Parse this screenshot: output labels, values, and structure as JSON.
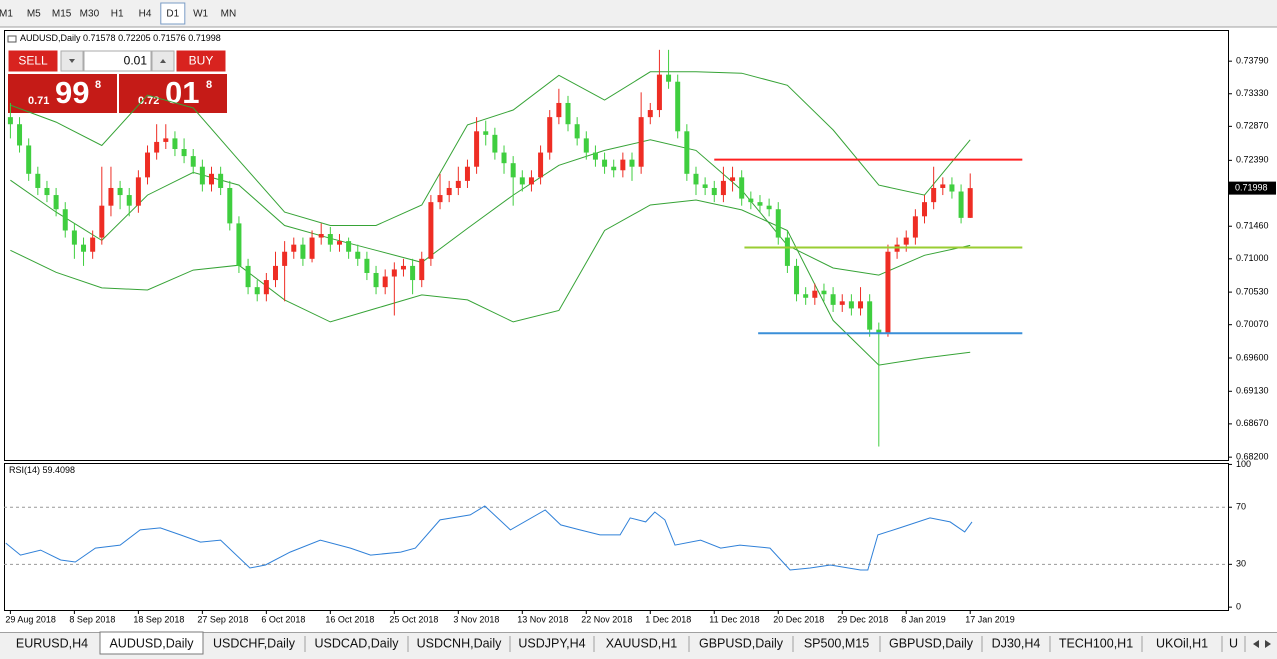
{
  "toolbar": {
    "timeframes": [
      "M1",
      "M5",
      "M15",
      "M30",
      "H1",
      "H4",
      "D1",
      "W1",
      "MN"
    ],
    "active": "D1"
  },
  "trade_panel": {
    "sell": "SELL",
    "lot": "0.01",
    "buy": "BUY",
    "bid": {
      "prefix": "0.71",
      "pips": "99",
      "point": "8"
    },
    "ask": {
      "prefix": "0.72",
      "pips": "01",
      "point": "8"
    }
  },
  "chart_data": [
    {
      "type": "candlestick",
      "title": "AUDUSD,Daily",
      "up_color": "#ee2d24",
      "down_color": "#3fce3f",
      "ohlc": [
        [
          0.73,
          0.732,
          0.727,
          0.729
        ],
        [
          0.729,
          0.73,
          0.725,
          0.726
        ],
        [
          0.726,
          0.727,
          0.721,
          0.722
        ],
        [
          0.722,
          0.723,
          0.719,
          0.72
        ],
        [
          0.72,
          0.721,
          0.718,
          0.719
        ],
        [
          0.719,
          0.72,
          0.716,
          0.717
        ],
        [
          0.717,
          0.718,
          0.713,
          0.714
        ],
        [
          0.714,
          0.715,
          0.71,
          0.712
        ],
        [
          0.712,
          0.713,
          0.709,
          0.711
        ],
        [
          0.711,
          0.714,
          0.71,
          0.713
        ],
        [
          0.713,
          0.723,
          0.712,
          0.7175
        ],
        [
          0.7175,
          0.723,
          0.716,
          0.72
        ],
        [
          0.72,
          0.721,
          0.717,
          0.719
        ],
        [
          0.719,
          0.72,
          0.716,
          0.7175
        ],
        [
          0.7175,
          0.7225,
          0.7165,
          0.7215
        ],
        [
          0.7215,
          0.726,
          0.7205,
          0.725
        ],
        [
          0.725,
          0.729,
          0.724,
          0.7265
        ],
        [
          0.7265,
          0.729,
          0.7255,
          0.727
        ],
        [
          0.727,
          0.728,
          0.7245,
          0.7255
        ],
        [
          0.7255,
          0.727,
          0.7235,
          0.7245
        ],
        [
          0.7245,
          0.7255,
          0.722,
          0.723
        ],
        [
          0.723,
          0.724,
          0.7195,
          0.7205
        ],
        [
          0.7205,
          0.723,
          0.7195,
          0.722
        ],
        [
          0.722,
          0.723,
          0.719,
          0.72
        ],
        [
          0.72,
          0.721,
          0.714,
          0.715
        ],
        [
          0.715,
          0.716,
          0.708,
          0.709
        ],
        [
          0.709,
          0.71,
          0.705,
          0.706
        ],
        [
          0.706,
          0.707,
          0.704,
          0.705
        ],
        [
          0.705,
          0.708,
          0.704,
          0.707
        ],
        [
          0.707,
          0.711,
          0.706,
          0.709
        ],
        [
          0.709,
          0.7125,
          0.704,
          0.711
        ],
        [
          0.711,
          0.713,
          0.71,
          0.712
        ],
        [
          0.712,
          0.713,
          0.709,
          0.71
        ],
        [
          0.71,
          0.714,
          0.7095,
          0.713
        ],
        [
          0.713,
          0.715,
          0.712,
          0.7135
        ],
        [
          0.7135,
          0.7145,
          0.711,
          0.712
        ],
        [
          0.712,
          0.7135,
          0.711,
          0.7125
        ],
        [
          0.7125,
          0.713,
          0.71,
          0.711
        ],
        [
          0.711,
          0.712,
          0.709,
          0.71
        ],
        [
          0.71,
          0.711,
          0.707,
          0.708
        ],
        [
          0.708,
          0.709,
          0.705,
          0.706
        ],
        [
          0.706,
          0.7085,
          0.705,
          0.7075
        ],
        [
          0.7075,
          0.7095,
          0.702,
          0.7085
        ],
        [
          0.7085,
          0.71,
          0.7075,
          0.709
        ],
        [
          0.709,
          0.71,
          0.705,
          0.707
        ],
        [
          0.707,
          0.711,
          0.706,
          0.71
        ],
        [
          0.71,
          0.719,
          0.709,
          0.718
        ],
        [
          0.718,
          0.722,
          0.717,
          0.719
        ],
        [
          0.719,
          0.721,
          0.718,
          0.72
        ],
        [
          0.72,
          0.723,
          0.719,
          0.721
        ],
        [
          0.721,
          0.724,
          0.72,
          0.723
        ],
        [
          0.723,
          0.73,
          0.722,
          0.728
        ],
        [
          0.728,
          0.7295,
          0.726,
          0.7275
        ],
        [
          0.7275,
          0.7285,
          0.724,
          0.725
        ],
        [
          0.725,
          0.726,
          0.722,
          0.7235
        ],
        [
          0.7235,
          0.7245,
          0.7175,
          0.7215
        ],
        [
          0.7215,
          0.7225,
          0.7195,
          0.7205
        ],
        [
          0.7205,
          0.7225,
          0.7195,
          0.7215
        ],
        [
          0.7215,
          0.726,
          0.7205,
          0.725
        ],
        [
          0.725,
          0.731,
          0.724,
          0.73
        ],
        [
          0.73,
          0.734,
          0.729,
          0.732
        ],
        [
          0.732,
          0.733,
          0.728,
          0.729
        ],
        [
          0.729,
          0.73,
          0.726,
          0.727
        ],
        [
          0.727,
          0.728,
          0.724,
          0.725
        ],
        [
          0.725,
          0.726,
          0.723,
          0.724
        ],
        [
          0.724,
          0.725,
          0.722,
          0.723
        ],
        [
          0.723,
          0.724,
          0.7215,
          0.7225
        ],
        [
          0.7225,
          0.725,
          0.7215,
          0.724
        ],
        [
          0.724,
          0.725,
          0.721,
          0.723
        ],
        [
          0.723,
          0.7335,
          0.722,
          0.73
        ],
        [
          0.73,
          0.732,
          0.729,
          0.731
        ],
        [
          0.731,
          0.7395,
          0.73,
          0.736
        ],
        [
          0.736,
          0.7395,
          0.734,
          0.735
        ],
        [
          0.735,
          0.736,
          0.727,
          0.728
        ],
        [
          0.728,
          0.729,
          0.721,
          0.722
        ],
        [
          0.722,
          0.723,
          0.719,
          0.7205
        ],
        [
          0.7205,
          0.7215,
          0.719,
          0.72
        ],
        [
          0.72,
          0.721,
          0.718,
          0.719
        ],
        [
          0.719,
          0.723,
          0.718,
          0.721
        ],
        [
          0.721,
          0.723,
          0.7195,
          0.7215
        ],
        [
          0.7215,
          0.7225,
          0.7175,
          0.7185
        ],
        [
          0.7185,
          0.7195,
          0.717,
          0.718
        ],
        [
          0.718,
          0.719,
          0.7165,
          0.7175
        ],
        [
          0.7175,
          0.7185,
          0.716,
          0.717
        ],
        [
          0.717,
          0.718,
          0.712,
          0.713
        ],
        [
          0.713,
          0.714,
          0.708,
          0.709
        ],
        [
          0.709,
          0.71,
          0.704,
          0.705
        ],
        [
          0.705,
          0.706,
          0.7035,
          0.7045
        ],
        [
          0.7045,
          0.7065,
          0.7035,
          0.7055
        ],
        [
          0.7055,
          0.7065,
          0.704,
          0.705
        ],
        [
          0.705,
          0.706,
          0.7025,
          0.7035
        ],
        [
          0.7035,
          0.705,
          0.7025,
          0.704
        ],
        [
          0.704,
          0.705,
          0.702,
          0.703
        ],
        [
          0.703,
          0.706,
          0.702,
          0.704
        ],
        [
          0.704,
          0.705,
          0.699,
          0.7
        ],
        [
          0.7,
          0.701,
          0.6835,
          0.6995
        ],
        [
          0.6995,
          0.712,
          0.699,
          0.711
        ],
        [
          0.711,
          0.713,
          0.71,
          0.712
        ],
        [
          0.712,
          0.714,
          0.711,
          0.713
        ],
        [
          0.713,
          0.717,
          0.712,
          0.716
        ],
        [
          0.716,
          0.719,
          0.715,
          0.718
        ],
        [
          0.718,
          0.723,
          0.717,
          0.72
        ],
        [
          0.72,
          0.7215,
          0.719,
          0.7205
        ],
        [
          0.7205,
          0.7215,
          0.7185,
          0.7195
        ],
        [
          0.7195,
          0.7205,
          0.715,
          0.71578
        ],
        [
          0.71578,
          0.72205,
          0.71576,
          0.71998
        ]
      ],
      "bands": {
        "color": "#36a336",
        "x": [
          0,
          5,
          10,
          15,
          20,
          25,
          30,
          35,
          40,
          45,
          50,
          55,
          60,
          65,
          70,
          75,
          80,
          85,
          90,
          95,
          100,
          105
        ],
        "upper": [
          0.7317,
          0.7293,
          0.726,
          0.7331,
          0.7313,
          0.7239,
          0.7166,
          0.7147,
          0.7147,
          0.7176,
          0.7289,
          0.731,
          0.7359,
          0.7324,
          0.7364,
          0.7364,
          0.7362,
          0.7345,
          0.7282,
          0.7204,
          0.719,
          0.7268
        ],
        "middle": [
          0.7211,
          0.7166,
          0.7126,
          0.719,
          0.7222,
          0.7204,
          0.7147,
          0.7129,
          0.7112,
          0.7095,
          0.7143,
          0.719,
          0.7232,
          0.7253,
          0.7268,
          0.7253,
          0.7197,
          0.7119,
          0.7087,
          0.7077,
          0.7105,
          0.7119
        ],
        "lower": [
          0.7112,
          0.7081,
          0.7059,
          0.7056,
          0.7084,
          0.7091,
          0.7042,
          0.7011,
          0.703,
          0.7049,
          0.7042,
          0.7011,
          0.7027,
          0.714,
          0.7176,
          0.7183,
          0.7169,
          0.714,
          0.7013,
          0.695,
          0.696,
          0.6968
        ]
      },
      "levels": [
        {
          "value": 0.724,
          "x": [
            77,
            110.7
          ],
          "color": "#ff2020"
        },
        {
          "value": 0.7116,
          "x": [
            80.3,
            110.7
          ],
          "color": "#9acd32"
        },
        {
          "value": 0.6995,
          "x": [
            81.8,
            110.7
          ],
          "color": "#3a8fd8"
        }
      ],
      "last": 0.71998,
      "xlim": [
        -0.7,
        133.2
      ],
      "xticks": [
        {
          "value": 0,
          "label": "29 Aug 2018"
        },
        {
          "value": 7,
          "label": "8 Sep 2018"
        },
        {
          "value": 14,
          "label": "18 Sep 2018"
        },
        {
          "value": 21,
          "label": "27 Sep 2018"
        },
        {
          "value": 28,
          "label": "6 Oct 2018"
        },
        {
          "value": 35,
          "label": "16 Oct 2018"
        },
        {
          "value": 42,
          "label": "25 Oct 2018"
        },
        {
          "value": 49,
          "label": "3 Nov 2018"
        },
        {
          "value": 56,
          "label": "13 Nov 2018"
        },
        {
          "value": 63,
          "label": "22 Nov 2018"
        },
        {
          "value": 70,
          "label": "1 Dec 2018"
        },
        {
          "value": 77,
          "label": "11 Dec 2018"
        },
        {
          "value": 84,
          "label": "20 Dec 2018"
        },
        {
          "value": 91,
          "label": "29 Dec 2018"
        },
        {
          "value": 98,
          "label": "8 Jan 2019"
        },
        {
          "value": 105,
          "label": "17 Jan 2019"
        }
      ],
      "ylim": [
        0.6816,
        0.7423
      ],
      "yticks": [
        {
          "value": 0.7379,
          "label": "0.73790"
        },
        {
          "value": 0.7333,
          "label": "0.73330"
        },
        {
          "value": 0.7287,
          "label": "0.72870"
        },
        {
          "value": 0.7239,
          "label": "0.72390"
        },
        {
          "value": 0.7146,
          "label": "0.71460"
        },
        {
          "value": 0.71,
          "label": "0.71000"
        },
        {
          "value": 0.7053,
          "label": "0.70530"
        },
        {
          "value": 0.7007,
          "label": "0.70070"
        },
        {
          "value": 0.696,
          "label": "0.69600"
        },
        {
          "value": 0.6913,
          "label": "0.69130"
        },
        {
          "value": 0.6867,
          "label": "0.68670"
        },
        {
          "value": 0.682,
          "label": "0.68200"
        }
      ]
    },
    {
      "type": "line",
      "title": "RSI(14)",
      "last_value": 59.4098,
      "color": "#2f80d8",
      "x": [
        -0.5,
        1.1,
        3.3,
        5.5,
        7.1,
        9.3,
        12,
        14.2,
        16.4,
        18.6,
        20.8,
        23,
        26.2,
        27.9,
        30.6,
        33.9,
        37.2,
        39.4,
        42.7,
        44.3,
        47,
        50.3,
        51.9,
        54.7,
        58.5,
        60.2,
        62.3,
        64.5,
        66.7,
        67.8,
        69.5,
        70.5,
        71.6,
        72.7,
        75.5,
        77.7,
        79.8,
        83.1,
        85.3,
        87.5,
        89.7,
        93,
        93.8,
        94.9,
        97.3,
        100.6,
        102.8,
        104.4,
        105.2
      ],
      "values": [
        44.9,
        36.5,
        40,
        33,
        31.6,
        41.4,
        43.5,
        54.1,
        55.5,
        50.6,
        45.6,
        47,
        27.4,
        29.5,
        38.6,
        47,
        41.4,
        36.5,
        38.6,
        41.4,
        61.1,
        64.6,
        70.9,
        54.1,
        68.1,
        57.6,
        54.1,
        50.6,
        50.6,
        62.5,
        59.7,
        66.7,
        61.1,
        43.5,
        47,
        41.4,
        43.5,
        41.4,
        26,
        27.4,
        29.5,
        26,
        26,
        50.6,
        55.5,
        62.5,
        59.7,
        52.7,
        59.7
      ],
      "ylim": [
        -2,
        101
      ],
      "yticks": [
        0,
        30,
        70,
        100
      ],
      "levels": [
        30,
        70
      ]
    }
  ],
  "tabs": {
    "items": [
      "EURUSD,H4",
      "AUDUSD,Daily",
      "USDCHF,Daily",
      "USDCAD,Daily",
      "USDCNH,Daily",
      "USDJPY,H4",
      "XAUUSD,H1",
      "GBPUSD,Daily",
      "SP500,M15",
      "GBPUSD,Daily",
      "DJ30,H4",
      "TECH100,H1",
      "UKOil,H1",
      "U"
    ],
    "active": "AUDUSD,Daily"
  }
}
